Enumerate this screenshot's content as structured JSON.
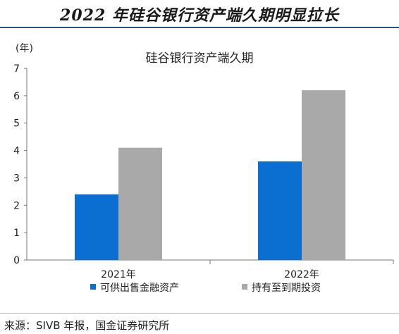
{
  "headline": "2022 年硅谷银行资产端久期明显拉长",
  "source": "来源：SIVB 年报，国金证券研究所",
  "colors": {
    "accent_rule": "#2f4f8a"
  },
  "chart_data": {
    "type": "bar",
    "title": "硅谷银行资产端久期",
    "ylabel": "(年)",
    "xlabel": "",
    "ylim": [
      0,
      7
    ],
    "yticks": [
      0,
      1,
      2,
      3,
      4,
      5,
      6,
      7
    ],
    "categories": [
      "2021年",
      "2022年"
    ],
    "series": [
      {
        "name": "可供出售金融资产",
        "values": [
          2.4,
          3.6
        ],
        "color": "#0b6fd1"
      },
      {
        "name": "持有至到期投资",
        "values": [
          4.1,
          6.2
        ],
        "color": "#a9a9a9"
      }
    ],
    "grid": false,
    "legend": "bottom"
  }
}
